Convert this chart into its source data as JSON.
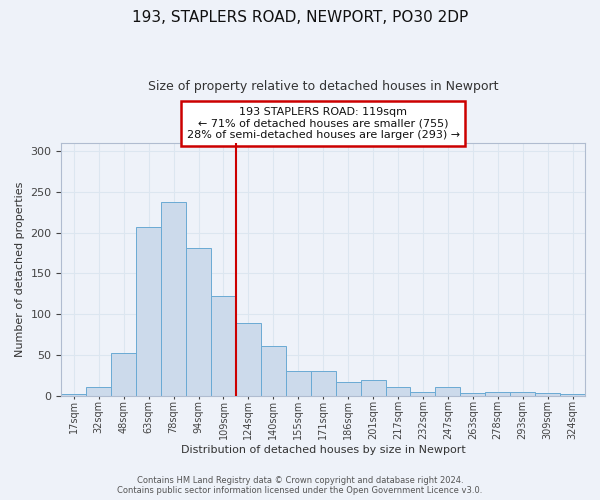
{
  "title_line1": "193, STAPLERS ROAD, NEWPORT, PO30 2DP",
  "title_line2": "Size of property relative to detached houses in Newport",
  "xlabel": "Distribution of detached houses by size in Newport",
  "ylabel": "Number of detached properties",
  "bin_labels": [
    "17sqm",
    "32sqm",
    "48sqm",
    "63sqm",
    "78sqm",
    "94sqm",
    "109sqm",
    "124sqm",
    "140sqm",
    "155sqm",
    "171sqm",
    "186sqm",
    "201sqm",
    "217sqm",
    "232sqm",
    "247sqm",
    "263sqm",
    "278sqm",
    "293sqm",
    "309sqm",
    "324sqm"
  ],
  "bar_heights": [
    2,
    11,
    52,
    207,
    238,
    181,
    122,
    89,
    61,
    31,
    31,
    17,
    20,
    11,
    5,
    11,
    4,
    5,
    5,
    3,
    2
  ],
  "bar_color": "#ccdaeb",
  "bar_edge_color": "#6aaad4",
  "grid_color": "#dce6f0",
  "background_color": "#eef2f9",
  "red_line_color": "#cc0000",
  "red_line_bin": 7,
  "annotation_line1": "193 STAPLERS ROAD: 119sqm",
  "annotation_line2": "← 71% of detached houses are smaller (755)",
  "annotation_line3": "28% of semi-detached houses are larger (293) →",
  "annotation_box_color": "white",
  "annotation_box_edge_color": "#cc0000",
  "footer_line1": "Contains HM Land Registry data © Crown copyright and database right 2024.",
  "footer_line2": "Contains public sector information licensed under the Open Government Licence v3.0.",
  "ylim": [
    0,
    310
  ],
  "yticks": [
    0,
    50,
    100,
    150,
    200,
    250,
    300
  ]
}
